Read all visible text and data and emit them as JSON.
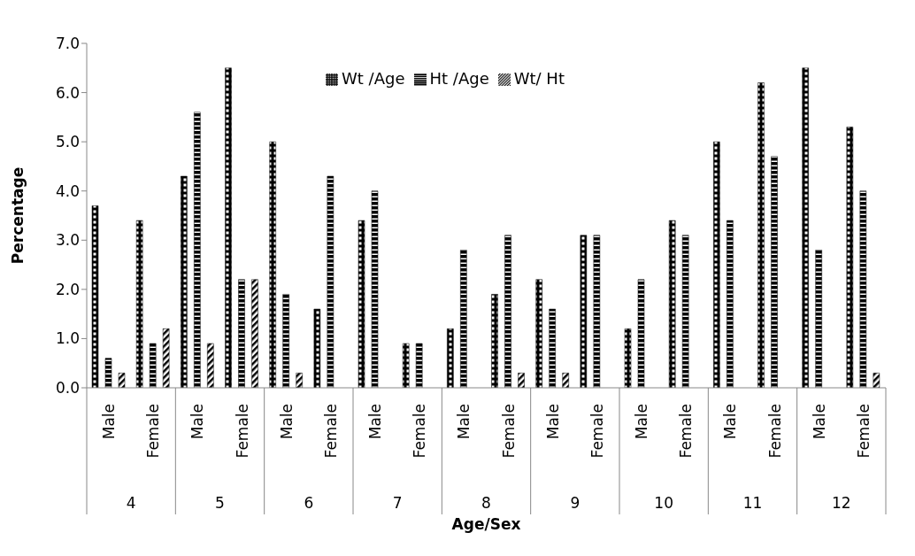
{
  "chart_data": {
    "type": "bar",
    "xlabel": "Age/Sex",
    "ylabel": "Percentage",
    "categories": [
      "Male",
      "Female",
      "Male",
      "Female",
      "Male",
      "Female",
      "Male",
      "Female",
      "Male",
      "Female",
      "Male",
      "Female",
      "Male",
      "Female",
      "Male",
      "Female",
      "Male",
      "Female"
    ],
    "annotations": [
      "4",
      "5",
      "6",
      "7",
      "8",
      "9",
      "10",
      "11",
      "12"
    ],
    "series": [
      {
        "name": "Wt /Age",
        "color": "#000000",
        "values": [
          3.7,
          3.4,
          4.3,
          6.5,
          5.0,
          1.6,
          3.4,
          0.9,
          1.2,
          1.9,
          2.2,
          3.1,
          1.2,
          3.4,
          5.0,
          6.2,
          6.5,
          5.3
        ]
      },
      {
        "name": "Ht /Age",
        "color": "#000000",
        "values": [
          0.6,
          0.9,
          5.6,
          2.2,
          1.9,
          4.3,
          4.0,
          0.9,
          2.8,
          3.1,
          1.6,
          3.1,
          2.2,
          3.1,
          3.4,
          4.7,
          2.8,
          4.0
        ]
      },
      {
        "name": "Wt/ Ht",
        "color": "#000000",
        "values": [
          0.3,
          1.2,
          0.9,
          2.2,
          0.3,
          null,
          null,
          null,
          null,
          0.3,
          0.3,
          null,
          null,
          null,
          null,
          null,
          null,
          0.3
        ]
      }
    ],
    "ylim": [
      0,
      7
    ],
    "yticks": [
      {
        "value": 0,
        "label": "0.0"
      },
      {
        "value": 1,
        "label": "1.0"
      },
      {
        "value": 2,
        "label": "2.0"
      },
      {
        "value": 3,
        "label": "3.0"
      },
      {
        "value": 4,
        "label": "4.0"
      },
      {
        "value": 5,
        "label": "5.0"
      },
      {
        "value": 6,
        "label": "6.0"
      },
      {
        "value": 7,
        "label": "7.0"
      }
    ],
    "grid": false,
    "legend": "top"
  }
}
